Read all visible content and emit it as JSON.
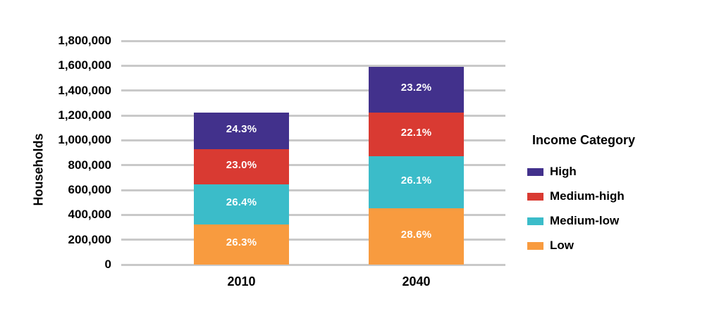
{
  "page": {
    "background": "#FFFFFF"
  },
  "chart_data": {
    "type": "bar",
    "stacked": true,
    "title": "",
    "xlabel": "",
    "ylabel": "Households",
    "categories": [
      "2010",
      "2040"
    ],
    "totals": [
      1225000,
      1590000
    ],
    "series": [
      {
        "name": "High",
        "color": "#42318C",
        "pct": [
          24.3,
          23.2
        ],
        "labels": [
          "24.3%",
          "23.2%"
        ]
      },
      {
        "name": "Medium-high",
        "color": "#D93A32",
        "pct": [
          23.0,
          22.1
        ],
        "labels": [
          "23.0%",
          "22.1%"
        ]
      },
      {
        "name": "Medium-low",
        "color": "#3BBCC9",
        "pct": [
          26.4,
          26.1
        ],
        "labels": [
          "26.4%",
          "26.1%"
        ]
      },
      {
        "name": "Low",
        "color": "#F89B3F",
        "pct": [
          26.3,
          28.6
        ],
        "labels": [
          "26.3%",
          "28.6%"
        ]
      }
    ],
    "stack_order_bottom_to_top": [
      "Low",
      "Medium-low",
      "Medium-high",
      "High"
    ],
    "ylim": [
      0,
      1800000
    ],
    "ytick_step": 200000,
    "ytick_labels": [
      "0",
      "200,000",
      "400,000",
      "600,000",
      "800,000",
      "1,000,000",
      "1,200,000",
      "1,400,000",
      "1,600,000",
      "1,800,000"
    ],
    "legend": {
      "title": "Income Category",
      "position": "right"
    },
    "grid": true,
    "gridline_color": "#C9C9C9",
    "data_label_color": "#FFFFFF",
    "text_color": "#000000"
  }
}
